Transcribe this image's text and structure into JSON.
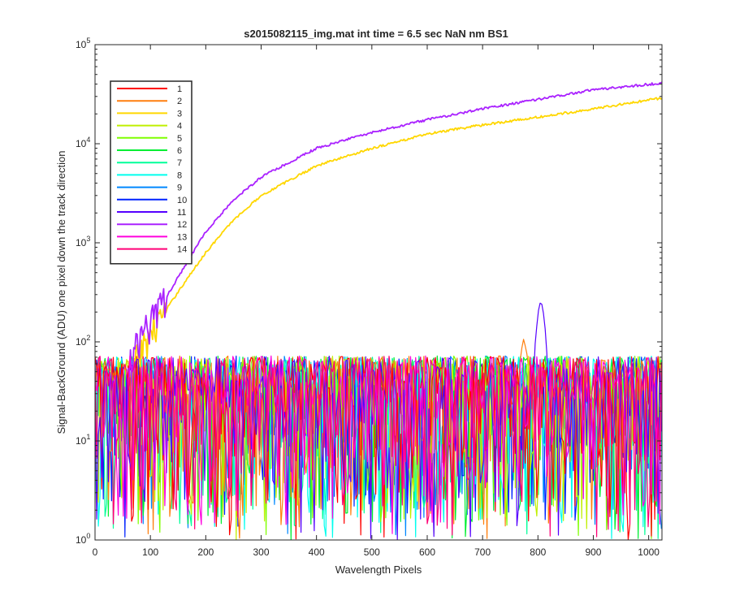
{
  "chart_data": {
    "type": "line",
    "title": "s2015082115_img.mat int time = 6.5 sec  NaN nm BS1",
    "xlabel": "Wavelength Pixels",
    "ylabel": "Signal-BackGround (ADU) one pixel down the track direction",
    "xlim": [
      0,
      1024
    ],
    "ylim": [
      1,
      100000
    ],
    "yscale": "log",
    "grid": false,
    "legend_position": "top-left",
    "x_ticks": [
      0,
      100,
      200,
      300,
      400,
      500,
      600,
      700,
      800,
      900,
      1000
    ],
    "y_ticks": [
      {
        "value": 1,
        "base": "10",
        "exp": "0"
      },
      {
        "value": 10,
        "base": "10",
        "exp": "1"
      },
      {
        "value": 100,
        "base": "10",
        "exp": "2"
      },
      {
        "value": 1000,
        "base": "10",
        "exp": "3"
      },
      {
        "value": 10000,
        "base": "10",
        "exp": "4"
      },
      {
        "value": 100000,
        "base": "10",
        "exp": "5"
      }
    ],
    "series": [
      {
        "name": "1",
        "color": "#ff0000",
        "kind": "noise"
      },
      {
        "name": "2",
        "color": "#ff7f0e",
        "kind": "noise",
        "peak": {
          "x": 775,
          "y": 110
        }
      },
      {
        "name": "3",
        "color": "#ffd700",
        "kind": "curve",
        "x": [
          70,
          100,
          150,
          200,
          250,
          300,
          400,
          500,
          600,
          700,
          800,
          900,
          1024
        ],
        "y": [
          55,
          120,
          320,
          800,
          1700,
          3000,
          6000,
          9000,
          12500,
          15500,
          18500,
          22500,
          29000
        ]
      },
      {
        "name": "4",
        "color": "#bfef00",
        "kind": "noise"
      },
      {
        "name": "5",
        "color": "#7fff00",
        "kind": "noise"
      },
      {
        "name": "6",
        "color": "#00ee33",
        "kind": "noise"
      },
      {
        "name": "7",
        "color": "#00ff99",
        "kind": "noise"
      },
      {
        "name": "8",
        "color": "#00ffee",
        "kind": "noise"
      },
      {
        "name": "9",
        "color": "#0088ff",
        "kind": "noise"
      },
      {
        "name": "10",
        "color": "#0022ff",
        "kind": "noise"
      },
      {
        "name": "11",
        "color": "#5500ff",
        "kind": "noise",
        "peak": {
          "x": 805,
          "y": 280
        }
      },
      {
        "name": "12",
        "color": "#aa22ff",
        "kind": "curve",
        "x": [
          60,
          100,
          150,
          200,
          250,
          300,
          400,
          500,
          600,
          700,
          800,
          900,
          1024
        ],
        "y": [
          60,
          150,
          450,
          1300,
          2700,
          4600,
          9000,
          13000,
          17500,
          22500,
          28000,
          35000,
          41000
        ]
      },
      {
        "name": "13",
        "color": "#ff00dd",
        "kind": "noise"
      },
      {
        "name": "14",
        "color": "#ff0077",
        "kind": "noise"
      }
    ]
  }
}
